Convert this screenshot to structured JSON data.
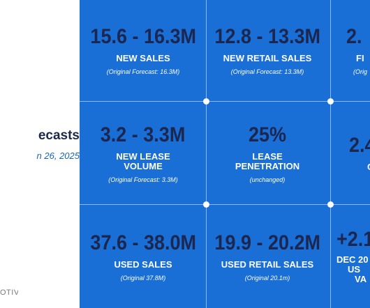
{
  "left": {
    "heading": "ecasts",
    "date": "n 26, 2025",
    "brand": "OTIVE"
  },
  "cells": [
    {
      "value": "15.6 - 16.3M",
      "label": "NEW SALES",
      "note": "(Original Forecast: 16.3M)"
    },
    {
      "value": "12.8 - 13.3M",
      "label": "NEW RETAIL SALES",
      "note": "(Original Forecast: 13.3M)"
    },
    {
      "value": "2.",
      "label": "FI",
      "note": "(Orig"
    },
    {
      "value": "3.2 - 3.3M",
      "label": "NEW LEASE",
      "label2": "VOLUME",
      "note": "(Original Forecast: 3.3M)"
    },
    {
      "value": "25%",
      "label": "LEASE",
      "label2": "PENETRATION",
      "note": "(unchanged)"
    },
    {
      "value": "2.4",
      "label": "O",
      "note": ""
    },
    {
      "value": "37.6 - 38.0M",
      "label": "USED SALES",
      "note": "(Original 37.8M)"
    },
    {
      "value": "19.9 - 20.2M",
      "label": "USED RETAIL SALES",
      "note": "(Original 20.1m)"
    },
    {
      "value": "+2.1",
      "label": "DEC 20",
      "label2": "US",
      "label3": "VA",
      "note": ""
    }
  ]
}
